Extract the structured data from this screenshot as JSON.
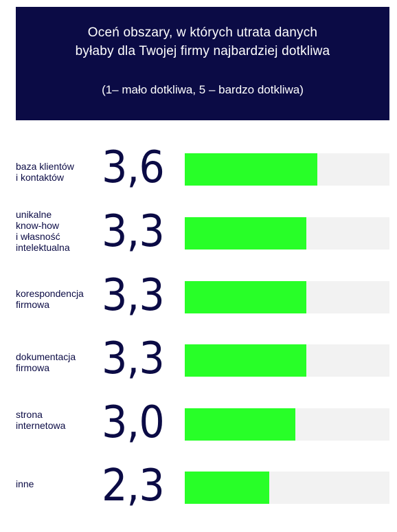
{
  "header": {
    "title_line1": "Oceń obszary, w których utrata danych",
    "title_line2": "byłaby dla Twojej firmy najbardziej dotkliwa",
    "subtitle": "(1– mało dotkliwa, 5 – bardzo dotkliwa)"
  },
  "colors": {
    "header_bg": "#0b0b45",
    "bar_fill": "#28ff28",
    "bar_track": "#f2f2f2",
    "text": "#0b0b45"
  },
  "chart_data": {
    "type": "bar",
    "orientation": "horizontal",
    "title": "Oceń obszary, w których utrata danych byłaby dla Twojej firmy najbardziej dotkliwa",
    "subtitle": "(1– mało dotkliwa, 5 – bardzo dotkliwa)",
    "xlim": [
      0,
      5
    ],
    "categories": [
      "baza klientów\ni kontaktów",
      "unikalne\nknow-how\ni własność\nintelektualna",
      "korespondencja\nfirmowa",
      "dokumentacja\nfirmowa",
      "strona\ninternetowa",
      "inne"
    ],
    "values": [
      3.6,
      3.3,
      3.3,
      3.3,
      3.0,
      2.3
    ],
    "value_labels": [
      "3,6",
      "3,3",
      "3,3",
      "3,3",
      "3,0",
      "2,3"
    ]
  }
}
